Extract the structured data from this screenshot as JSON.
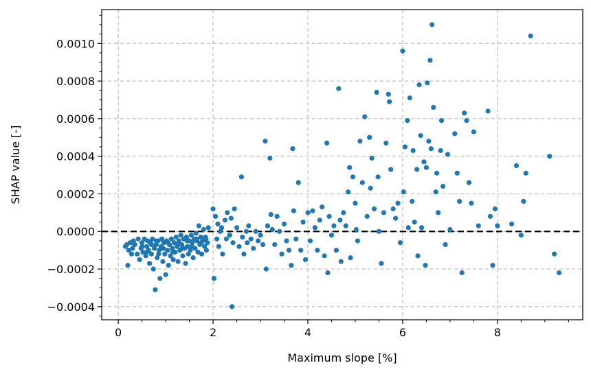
{
  "chart_data": {
    "type": "scatter",
    "xlabel": "Maximum slope [%]",
    "ylabel": "SHAP value [-]",
    "xlim": [
      -0.35,
      9.8
    ],
    "ylim": [
      -0.00047,
      0.00118
    ],
    "xticks": [
      0,
      2,
      4,
      6,
      8
    ],
    "xtick_labels": [
      "0",
      "2",
      "4",
      "6",
      "8"
    ],
    "yticks": [
      -0.0004,
      -0.0002,
      0.0,
      0.0002,
      0.0004,
      0.0006,
      0.0008,
      0.001
    ],
    "ytick_labels": [
      "−0.0004",
      "−0.0002",
      "0.0000",
      "0.0002",
      "0.0004",
      "0.0006",
      "0.0008",
      "0.0010"
    ],
    "grid": true,
    "reference_line_y": 0.0,
    "colors": {
      "points": "#1f77b4",
      "reference_line": "#000000",
      "grid": "#b0b0b0"
    },
    "points": [
      [
        0.15,
        -8e-05
      ],
      [
        0.18,
        -7e-05
      ],
      [
        0.2,
        -0.00018
      ],
      [
        0.22,
        -0.0001
      ],
      [
        0.25,
        -6e-05
      ],
      [
        0.28,
        -0.00012
      ],
      [
        0.3,
        -9e-05
      ],
      [
        0.32,
        -5e-05
      ],
      [
        0.35,
        -7e-05
      ],
      [
        0.4,
        -0.00012
      ],
      [
        0.42,
        -4e-05
      ],
      [
        0.45,
        -0.00015
      ],
      [
        0.48,
        -9e-05
      ],
      [
        0.5,
        -6e-05
      ],
      [
        0.52,
        -0.00011
      ],
      [
        0.55,
        -4e-05
      ],
      [
        0.58,
        -0.00013
      ],
      [
        0.6,
        -8e-05
      ],
      [
        0.62,
        -5e-05
      ],
      [
        0.64,
        -0.0001
      ],
      [
        0.66,
        -0.00017
      ],
      [
        0.68,
        -6e-05
      ],
      [
        0.7,
        -0.00012
      ],
      [
        0.72,
        -4e-05
      ],
      [
        0.74,
        -0.0002
      ],
      [
        0.76,
        -9e-05
      ],
      [
        0.78,
        -0.00031
      ],
      [
        0.8,
        -7e-05
      ],
      [
        0.82,
        -0.00014
      ],
      [
        0.84,
        -5e-05
      ],
      [
        0.86,
        -0.0001
      ],
      [
        0.88,
        -0.00025
      ],
      [
        0.9,
        -8e-05
      ],
      [
        0.92,
        -4e-05
      ],
      [
        0.94,
        -0.00016
      ],
      [
        0.96,
        -6e-05
      ],
      [
        0.98,
        -0.00012
      ],
      [
        1.0,
        -0.00023
      ],
      [
        1.02,
        -5e-05
      ],
      [
        1.04,
        -0.0001
      ],
      [
        1.06,
        -0.00018
      ],
      [
        1.08,
        -7e-05
      ],
      [
        1.1,
        -0.00013
      ],
      [
        1.12,
        -4e-05
      ],
      [
        1.14,
        -9e-05
      ],
      [
        1.16,
        -0.00015
      ],
      [
        1.18,
        -6e-05
      ],
      [
        1.2,
        -0.00011
      ],
      [
        1.22,
        -3e-05
      ],
      [
        1.24,
        -8e-05
      ],
      [
        1.26,
        -0.00016
      ],
      [
        1.28,
        -5e-05
      ],
      [
        1.3,
        -0.0001
      ],
      [
        1.32,
        -2e-05
      ],
      [
        1.34,
        -7e-05
      ],
      [
        1.36,
        -0.00013
      ],
      [
        1.38,
        -4e-05
      ],
      [
        1.4,
        -9e-05
      ],
      [
        1.42,
        -0.00017
      ],
      [
        1.44,
        -3e-05
      ],
      [
        1.46,
        -8e-05
      ],
      [
        1.48,
        -0.00012
      ],
      [
        1.5,
        -5e-05
      ],
      [
        1.52,
        -0.0001
      ],
      [
        1.54,
        -2e-05
      ],
      [
        1.56,
        -6e-05
      ],
      [
        1.58,
        -0.00014
      ],
      [
        1.6,
        -4e-05
      ],
      [
        1.62,
        -9e-05
      ],
      [
        1.64,
        -1e-05
      ],
      [
        1.66,
        -5e-05
      ],
      [
        1.68,
        -0.00011
      ],
      [
        1.7,
        3e-05
      ],
      [
        1.72,
        -7e-05
      ],
      [
        1.74,
        -3e-05
      ],
      [
        1.76,
        -0.00012
      ],
      [
        1.78,
        -5e-05
      ],
      [
        1.8,
        1e-05
      ],
      [
        1.82,
        -8e-05
      ],
      [
        1.84,
        -3e-05
      ],
      [
        1.86,
        -0.0001
      ],
      [
        1.88,
        -6e-05
      ],
      [
        1.9,
        2e-05
      ],
      [
        0.3,
        -6e-05
      ],
      [
        0.5,
        -8e-05
      ],
      [
        0.6,
        -0.00011
      ],
      [
        0.7,
        -7e-05
      ],
      [
        0.8,
        -5e-05
      ],
      [
        0.85,
        -0.00012
      ],
      [
        0.95,
        -9e-05
      ],
      [
        1.05,
        -6e-05
      ],
      [
        1.15,
        -0.00011
      ],
      [
        1.25,
        -7e-05
      ],
      [
        1.35,
        -9e-05
      ],
      [
        1.45,
        -5e-05
      ],
      [
        1.55,
        -8e-05
      ],
      [
        1.65,
        -4e-05
      ],
      [
        1.75,
        -6e-05
      ],
      [
        1.85,
        -4e-05
      ],
      [
        2.0,
        0.00012
      ],
      [
        2.02,
        -0.00025
      ],
      [
        2.05,
        8e-05
      ],
      [
        2.08,
        -4e-05
      ],
      [
        2.1,
        4e-05
      ],
      [
        2.12,
        -8e-05
      ],
      [
        2.15,
        0.0
      ],
      [
        2.18,
        2e-05
      ],
      [
        2.2,
        -0.00012
      ],
      [
        2.25,
        6e-05
      ],
      [
        2.28,
        -4e-05
      ],
      [
        2.3,
        0.0001
      ],
      [
        2.35,
        -2e-05
      ],
      [
        2.38,
        7e-05
      ],
      [
        2.4,
        -0.0004
      ],
      [
        2.42,
        -6e-05
      ],
      [
        2.45,
        0.00012
      ],
      [
        2.5,
        2e-05
      ],
      [
        2.55,
        -8e-05
      ],
      [
        2.6,
        0.00029
      ],
      [
        2.62,
        -3e-05
      ],
      [
        2.65,
        -0.00012
      ],
      [
        2.7,
        0.0
      ],
      [
        2.72,
        -6e-05
      ],
      [
        2.75,
        3e-05
      ],
      [
        2.8,
        -4e-05
      ],
      [
        2.85,
        -9e-05
      ],
      [
        2.9,
        0.0
      ],
      [
        2.95,
        -5e-05
      ],
      [
        3.0,
        -2e-05
      ],
      [
        3.05,
        -7e-05
      ],
      [
        3.1,
        0.00048
      ],
      [
        3.12,
        -0.0002
      ],
      [
        3.15,
        3e-05
      ],
      [
        3.2,
        0.00039
      ],
      [
        3.22,
        9e-05
      ],
      [
        3.25,
        1e-05
      ],
      [
        3.3,
        -7e-05
      ],
      [
        3.35,
        8e-05
      ],
      [
        3.4,
        0.0
      ],
      [
        3.45,
        -0.00012
      ],
      [
        3.5,
        4e-05
      ],
      [
        3.55,
        -5e-05
      ],
      [
        3.6,
        -0.0001
      ],
      [
        3.65,
        -0.00018
      ],
      [
        3.68,
        0.00044
      ],
      [
        3.7,
        0.00011
      ],
      [
        3.75,
        -4e-05
      ],
      [
        3.8,
        0.00026
      ],
      [
        3.85,
        -0.0001
      ],
      [
        3.9,
        5e-05
      ],
      [
        3.95,
        -0.00015
      ],
      [
        4.0,
        0.0001
      ],
      [
        4.05,
        -5e-05
      ],
      [
        4.1,
        0.00011
      ],
      [
        4.15,
        2e-05
      ],
      [
        4.2,
        -0.0001
      ],
      [
        4.25,
        6e-05
      ],
      [
        4.3,
        0.00013
      ],
      [
        4.35,
        -0.00013
      ],
      [
        4.4,
        0.00047
      ],
      [
        4.42,
        -0.00022
      ],
      [
        4.45,
        8e-05
      ],
      [
        4.5,
        -2e-05
      ],
      [
        4.55,
        3e-05
      ],
      [
        4.6,
        -0.0001
      ],
      [
        4.65,
        0.00076
      ],
      [
        4.68,
        6e-05
      ],
      [
        4.7,
        -0.00016
      ],
      [
        4.75,
        0.0001
      ],
      [
        4.8,
        3e-05
      ],
      [
        4.85,
        0.00021
      ],
      [
        4.88,
        0.00034
      ],
      [
        4.9,
        -0.00014
      ],
      [
        4.95,
        0.00029
      ],
      [
        5.0,
        0.00015
      ],
      [
        5.02,
        1e-05
      ],
      [
        5.05,
        -5e-05
      ],
      [
        5.1,
        0.00048
      ],
      [
        5.15,
        0.00026
      ],
      [
        5.2,
        0.00061
      ],
      [
        5.25,
        8e-05
      ],
      [
        5.3,
        0.0005
      ],
      [
        5.32,
        0.00023
      ],
      [
        5.35,
        0.00039
      ],
      [
        5.4,
        0.00012
      ],
      [
        5.45,
        0.00074
      ],
      [
        5.48,
        0.00029
      ],
      [
        5.5,
        0.0
      ],
      [
        5.55,
        -0.00017
      ],
      [
        5.6,
        0.0001
      ],
      [
        5.65,
        0.00047
      ],
      [
        5.7,
        0.00073
      ],
      [
        5.72,
        0.00069
      ],
      [
        5.75,
        0.00033
      ],
      [
        5.8,
        0.00012
      ],
      [
        5.85,
        7e-05
      ],
      [
        5.9,
        0.00015
      ],
      [
        5.95,
        -6e-05
      ],
      [
        6.0,
        0.00096
      ],
      [
        6.02,
        0.00021
      ],
      [
        6.05,
        0.00045
      ],
      [
        6.1,
        0.00059
      ],
      [
        6.12,
        2e-05
      ],
      [
        6.15,
        0.00071
      ],
      [
        6.2,
        0.00016
      ],
      [
        6.22,
        0.00043
      ],
      [
        6.25,
        5e-05
      ],
      [
        6.3,
        0.00033
      ],
      [
        6.32,
        -0.00013
      ],
      [
        6.35,
        0.00078
      ],
      [
        6.38,
        0.00051
      ],
      [
        6.4,
        2e-05
      ],
      [
        6.45,
        0.00037
      ],
      [
        6.48,
        -0.00018
      ],
      [
        6.5,
        0.00034
      ],
      [
        6.52,
        0.00079
      ],
      [
        6.55,
        0.00048
      ],
      [
        6.58,
        0.00091
      ],
      [
        6.6,
        0.00044
      ],
      [
        6.62,
        0.0011
      ],
      [
        6.65,
        0.00066
      ],
      [
        6.7,
        0.00021
      ],
      [
        6.72,
        0.00031
      ],
      [
        6.75,
        0.0001
      ],
      [
        6.8,
        0.00043
      ],
      [
        6.82,
        0.00059
      ],
      [
        6.85,
        0.00024
      ],
      [
        6.9,
        -7e-05
      ],
      [
        6.95,
        0.00041
      ],
      [
        7.0,
        1e-05
      ],
      [
        7.1,
        0.00052
      ],
      [
        7.15,
        0.00031
      ],
      [
        7.2,
        0.00016
      ],
      [
        7.25,
        -0.00022
      ],
      [
        7.3,
        0.00063
      ],
      [
        7.35,
        0.00059
      ],
      [
        7.4,
        0.00026
      ],
      [
        7.45,
        0.00015
      ],
      [
        7.5,
        0.00053
      ],
      [
        7.6,
        3e-05
      ],
      [
        7.8,
        0.00064
      ],
      [
        7.85,
        8e-05
      ],
      [
        7.9,
        -0.00018
      ],
      [
        7.95,
        0.00012
      ],
      [
        8.0,
        3e-05
      ],
      [
        8.3,
        4e-05
      ],
      [
        8.4,
        0.00035
      ],
      [
        8.5,
        -2e-05
      ],
      [
        8.55,
        0.00016
      ],
      [
        8.6,
        0.00031
      ],
      [
        8.7,
        0.00104
      ],
      [
        9.1,
        0.0004
      ],
      [
        9.2,
        -0.00012
      ],
      [
        9.3,
        -0.00022
      ]
    ]
  }
}
